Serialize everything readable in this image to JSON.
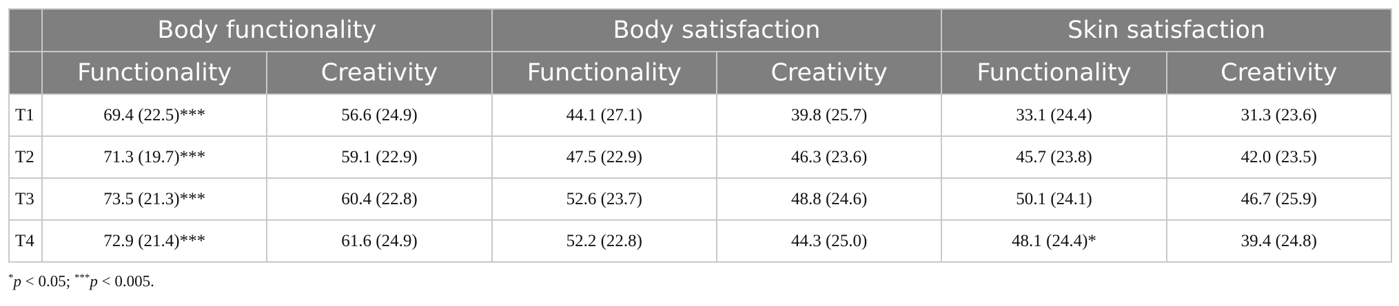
{
  "table": {
    "group_headers": [
      "Body functionality",
      "Body satisfaction",
      "Skin satisfaction"
    ],
    "sub_headers": [
      "Functionality",
      "Creativity",
      "Functionality",
      "Creativity",
      "Functionality",
      "Creativity"
    ],
    "rows": [
      {
        "label": "T1",
        "cells": [
          "69.4 (22.5)***",
          "56.6 (24.9)",
          "44.1 (27.1)",
          "39.8 (25.7)",
          "33.1 (24.4)",
          "31.3 (23.6)"
        ]
      },
      {
        "label": "T2",
        "cells": [
          "71.3 (19.7)***",
          "59.1 (22.9)",
          "47.5 (22.9)",
          "46.3 (23.6)",
          "45.7 (23.8)",
          "42.0 (23.5)"
        ]
      },
      {
        "label": "T3",
        "cells": [
          "73.5 (21.3)***",
          "60.4 (22.8)",
          "52.6 (23.7)",
          "48.8 (24.6)",
          "50.1 (24.1)",
          "46.7 (25.9)"
        ]
      },
      {
        "label": "T4",
        "cells": [
          "72.9 (21.4)***",
          "61.6 (24.9)",
          "52.2 (22.8)",
          "44.3 (25.0)",
          "48.1 (24.4)*",
          "39.4 (24.8)"
        ]
      }
    ]
  },
  "footnote": {
    "part1_sup": "*",
    "part1_var": "p",
    "part1_text": " < 0.05; ",
    "part2_sup": "***",
    "part2_var": "p",
    "part2_text": " < 0.005."
  },
  "colors": {
    "header_bg": "#7f7f7f",
    "border": "#c9c9c9"
  }
}
